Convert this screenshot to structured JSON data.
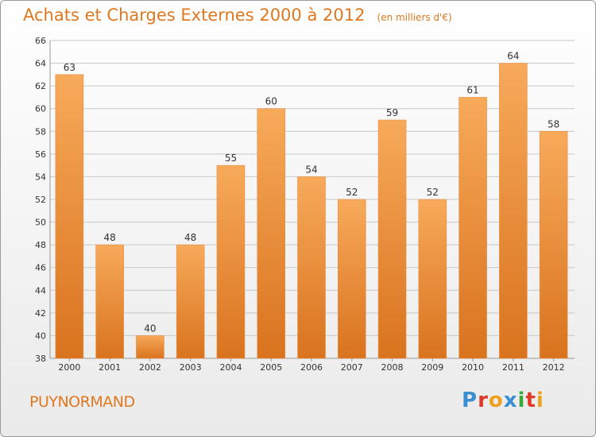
{
  "header": {
    "title": "Achats et Charges Externes 2000 à 2012",
    "unit": "(en milliers d'€)"
  },
  "footer": {
    "commune": "PUYNORMAND",
    "logo_text": "Proxiti",
    "logo_letters": [
      {
        "ch": "P",
        "color": "#3a8fd0"
      },
      {
        "ch": "r",
        "color": "#e03a2a"
      },
      {
        "ch": "o",
        "color": "#f0a020"
      },
      {
        "ch": "x",
        "color": "#3a8fd0"
      },
      {
        "ch": "i",
        "color": "#3aa83a"
      },
      {
        "ch": "t",
        "color": "#e03a2a"
      },
      {
        "ch": "i",
        "color": "#f0a020"
      }
    ]
  },
  "colors": {
    "accent": "#e07820",
    "bar_top": "#f7aa5a",
    "bar_bottom": "#d9731e",
    "grid": "#c8c8c8"
  },
  "chart_data": {
    "type": "bar",
    "title": "Achats et Charges Externes 2000 à 2012",
    "unit": "(en milliers d'€)",
    "categories": [
      "2000",
      "2001",
      "2002",
      "2003",
      "2004",
      "2005",
      "2006",
      "2007",
      "2008",
      "2009",
      "2010",
      "2011",
      "2012"
    ],
    "values": [
      63,
      48,
      40,
      48,
      55,
      60,
      54,
      52,
      59,
      52,
      61,
      64,
      58
    ],
    "ylim": [
      38,
      66
    ],
    "yticks": [
      38,
      40,
      42,
      44,
      46,
      48,
      50,
      52,
      54,
      56,
      58,
      60,
      62,
      64,
      66
    ],
    "grid": true,
    "data_labels": true
  }
}
